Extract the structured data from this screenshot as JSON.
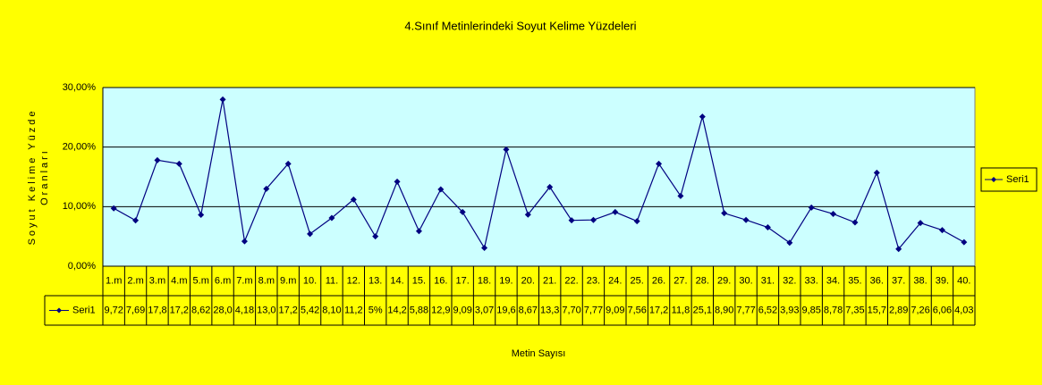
{
  "chart_data": {
    "type": "line",
    "title": "4.Sınıf Metinlerindeki Soyut Kelime Yüzdeleri",
    "ylabel": [
      "Soyut Kelime Yüzde",
      "Oranları"
    ],
    "xlabel": "Metin Sayısı",
    "categories": [
      "1.m",
      "2.m",
      "3.m",
      "4.m",
      "5.m",
      "6.m",
      "7.m",
      "8.m",
      "9.m",
      "10.",
      "11.",
      "12.",
      "13.",
      "14.",
      "15.",
      "16.",
      "17.",
      "18.",
      "19.",
      "20.",
      "21.",
      "22.",
      "23.",
      "24.",
      "25.",
      "26.",
      "27.",
      "28.",
      "29.",
      "30.",
      "31.",
      "32.",
      "33.",
      "34.",
      "35.",
      "36.",
      "37.",
      "38.",
      "39.",
      "40."
    ],
    "series": [
      {
        "name": "Seri1",
        "color": "#000080",
        "values": [
          9.72,
          7.69,
          17.8,
          17.2,
          8.62,
          28.0,
          4.18,
          13.0,
          17.2,
          5.42,
          8.1,
          11.2,
          5,
          14.2,
          5.88,
          12.9,
          9.09,
          3.07,
          19.6,
          8.67,
          13.3,
          7.7,
          7.77,
          9.09,
          7.56,
          17.2,
          11.8,
          25.1,
          8.9,
          7.77,
          6.52,
          3.93,
          9.85,
          8.78,
          7.35,
          15.7,
          2.89,
          7.26,
          6.06,
          4.03
        ],
        "value_labels": [
          "9,72",
          "7,69",
          "17,8",
          "17,2",
          "8,62",
          "28,0",
          "4,18",
          "13,0",
          "17,2",
          "5,42",
          "8,10",
          "11,2",
          "5%",
          "14,2",
          "5,88",
          "12,9",
          "9,09",
          "3,07",
          "19,6",
          "8,67",
          "13,3",
          "7,70",
          "7,77",
          "9,09",
          "7,56",
          "17,2",
          "11,8",
          "25,1",
          "8,90",
          "7,77",
          "6,52",
          "3,93",
          "9,85",
          "8,78",
          "7,35",
          "15,7",
          "2,89",
          "7,26",
          "6,06",
          "4,03"
        ]
      }
    ],
    "ylim": [
      0,
      30
    ],
    "yticks": [
      {
        "value": 0,
        "label": "0,00%"
      },
      {
        "value": 10,
        "label": "10,00%"
      },
      {
        "value": 20,
        "label": "20,00%"
      },
      {
        "value": 30,
        "label": "30,00%"
      }
    ],
    "grid": true,
    "legend": "right",
    "plot_background": "#ccffff",
    "background": "#ffff00"
  }
}
